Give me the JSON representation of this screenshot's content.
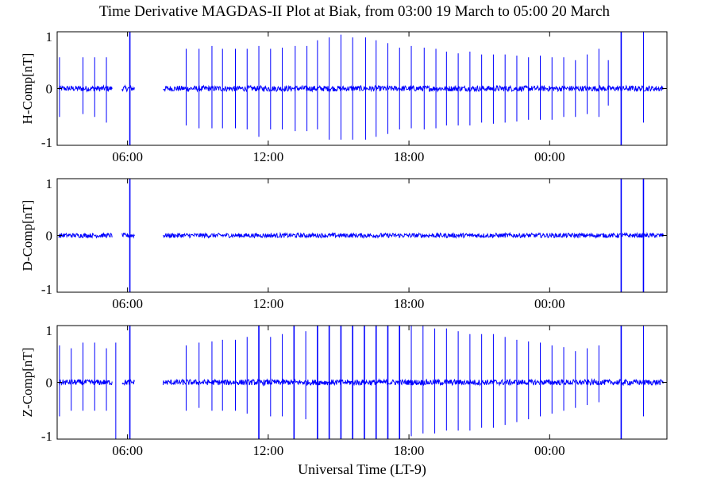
{
  "chart_data": {
    "type": "line",
    "title": "Time Derivative MAGDAS-II Plot at Biak, from 03:00 19 March to 05:00 20 March",
    "xlabel": "Universal Time (LT-9)",
    "x_range_hours_ut": [
      3.0,
      29.0
    ],
    "x_ticks": [
      "06:00",
      "12:00",
      "18:00",
      "00:00"
    ],
    "x_tick_hours_ut": [
      6,
      12,
      18,
      24
    ],
    "data_gaps_hours_ut": [
      [
        5.35,
        5.75
      ],
      [
        6.3,
        7.5
      ]
    ],
    "panels": [
      {
        "ylabel": "H-Comp[nT]",
        "ylim": [
          -1,
          1
        ],
        "yticks": [
          "1",
          "0",
          "-1"
        ],
        "noise_amplitude": 0.05,
        "spikes": [
          {
            "t": 3.1,
            "up": 0.55,
            "down": -0.5
          },
          {
            "t": 4.1,
            "up": 0.55,
            "down": -0.45
          },
          {
            "t": 4.6,
            "up": 0.55,
            "down": -0.5
          },
          {
            "t": 5.1,
            "up": 0.55,
            "down": -0.6
          },
          {
            "t": 6.1,
            "up": 1.0,
            "down": -1.0
          },
          {
            "t": 8.5,
            "up": 0.7,
            "down": -0.65
          },
          {
            "t": 9.05,
            "up": 0.7,
            "down": -0.7
          },
          {
            "t": 9.6,
            "up": 0.75,
            "down": -0.7
          },
          {
            "t": 10.05,
            "up": 0.7,
            "down": -0.7
          },
          {
            "t": 10.6,
            "up": 0.7,
            "down": -0.7
          },
          {
            "t": 11.1,
            "up": 0.7,
            "down": -0.72
          },
          {
            "t": 11.6,
            "up": 0.75,
            "down": -0.85
          },
          {
            "t": 12.1,
            "up": 0.7,
            "down": -0.72
          },
          {
            "t": 12.6,
            "up": 0.72,
            "down": -0.72
          },
          {
            "t": 13.15,
            "up": 0.75,
            "down": -0.75
          },
          {
            "t": 13.65,
            "up": 0.75,
            "down": -0.75
          },
          {
            "t": 14.1,
            "up": 0.85,
            "down": -0.72
          },
          {
            "t": 14.6,
            "up": 0.9,
            "down": -0.9
          },
          {
            "t": 15.1,
            "up": 0.95,
            "down": -0.9
          },
          {
            "t": 15.6,
            "up": 0.9,
            "down": -0.9
          },
          {
            "t": 16.15,
            "up": 0.9,
            "down": -0.9
          },
          {
            "t": 16.6,
            "up": 0.85,
            "down": -0.85
          },
          {
            "t": 17.1,
            "up": 0.8,
            "down": -0.8
          },
          {
            "t": 17.6,
            "up": 0.72,
            "down": -0.72
          },
          {
            "t": 18.1,
            "up": 0.75,
            "down": -0.7
          },
          {
            "t": 18.65,
            "up": 0.72,
            "down": -0.72
          },
          {
            "t": 19.15,
            "up": 0.7,
            "down": -0.7
          },
          {
            "t": 19.6,
            "up": 0.65,
            "down": -0.65
          },
          {
            "t": 20.1,
            "up": 0.62,
            "down": -0.65
          },
          {
            "t": 20.6,
            "up": 0.65,
            "down": -0.65
          },
          {
            "t": 21.1,
            "up": 0.6,
            "down": -0.6
          },
          {
            "t": 21.6,
            "up": 0.6,
            "down": -0.62
          },
          {
            "t": 22.1,
            "up": 0.6,
            "down": -0.6
          },
          {
            "t": 22.6,
            "up": 0.58,
            "down": -0.58
          },
          {
            "t": 23.1,
            "up": 0.55,
            "down": -0.55
          },
          {
            "t": 23.6,
            "up": 0.58,
            "down": -0.55
          },
          {
            "t": 24.1,
            "up": 0.55,
            "down": -0.55
          },
          {
            "t": 24.6,
            "up": 0.55,
            "down": -0.5
          },
          {
            "t": 25.1,
            "up": 0.5,
            "down": -0.5
          },
          {
            "t": 25.6,
            "up": 0.6,
            "down": -0.45
          },
          {
            "t": 26.1,
            "up": 0.7,
            "down": -0.5
          },
          {
            "t": 26.5,
            "up": 0.5,
            "down": -0.3
          },
          {
            "t": 27.05,
            "up": 1.0,
            "down": -1.0
          },
          {
            "t": 28.0,
            "up": 1.0,
            "down": -0.6
          }
        ]
      },
      {
        "ylabel": "D-Comp[nT]",
        "ylim": [
          -1,
          1
        ],
        "yticks": [
          "1",
          "0",
          "-1"
        ],
        "noise_amplitude": 0.04,
        "spikes": [
          {
            "t": 6.1,
            "up": 1.0,
            "down": -1.0
          },
          {
            "t": 27.05,
            "up": 1.0,
            "down": -1.0
          },
          {
            "t": 28.0,
            "up": 1.0,
            "down": -1.0
          }
        ]
      },
      {
        "ylabel": "Z-Comp[nT]",
        "ylim": [
          -1,
          1
        ],
        "yticks": [
          "1",
          "0",
          "-1"
        ],
        "noise_amplitude": 0.05,
        "spikes": [
          {
            "t": 3.1,
            "up": 0.65,
            "down": -0.6
          },
          {
            "t": 3.6,
            "up": 0.6,
            "down": -0.5
          },
          {
            "t": 4.1,
            "up": 0.7,
            "down": -0.5
          },
          {
            "t": 4.6,
            "up": 0.7,
            "down": -0.5
          },
          {
            "t": 5.1,
            "up": 0.6,
            "down": -0.5
          },
          {
            "t": 5.5,
            "up": 0.7,
            "down": -1.0
          },
          {
            "t": 6.1,
            "up": 1.0,
            "down": -1.0
          },
          {
            "t": 8.5,
            "up": 0.65,
            "down": -0.5
          },
          {
            "t": 9.05,
            "up": 0.7,
            "down": -0.45
          },
          {
            "t": 9.6,
            "up": 0.72,
            "down": -0.5
          },
          {
            "t": 10.05,
            "up": 0.75,
            "down": -0.5
          },
          {
            "t": 10.6,
            "up": 0.75,
            "down": -0.5
          },
          {
            "t": 11.1,
            "up": 0.8,
            "down": -0.55
          },
          {
            "t": 11.6,
            "up": 1.0,
            "down": -1.0
          },
          {
            "t": 12.1,
            "up": 0.8,
            "down": -0.6
          },
          {
            "t": 12.6,
            "up": 0.85,
            "down": -0.6
          },
          {
            "t": 13.1,
            "up": 1.0,
            "down": -1.0
          },
          {
            "t": 13.6,
            "up": 0.9,
            "down": -0.65
          },
          {
            "t": 14.1,
            "up": 1.0,
            "down": -1.0
          },
          {
            "t": 14.6,
            "up": 1.0,
            "down": -1.0
          },
          {
            "t": 15.1,
            "up": 1.0,
            "down": -1.0
          },
          {
            "t": 15.6,
            "up": 1.0,
            "down": -1.0
          },
          {
            "t": 16.1,
            "up": 1.0,
            "down": -1.0
          },
          {
            "t": 16.6,
            "up": 1.0,
            "down": -1.0
          },
          {
            "t": 17.1,
            "up": 1.0,
            "down": -1.0
          },
          {
            "t": 17.6,
            "up": 1.0,
            "down": -1.0
          },
          {
            "t": 18.1,
            "up": 1.0,
            "down": -0.95
          },
          {
            "t": 18.6,
            "up": 1.0,
            "down": -0.9
          },
          {
            "t": 19.1,
            "up": 0.95,
            "down": -0.9
          },
          {
            "t": 19.6,
            "up": 0.95,
            "down": -0.85
          },
          {
            "t": 20.1,
            "up": 0.9,
            "down": -0.85
          },
          {
            "t": 20.6,
            "up": 0.85,
            "down": -0.85
          },
          {
            "t": 21.1,
            "up": 0.85,
            "down": -0.8
          },
          {
            "t": 21.6,
            "up": 0.85,
            "down": -0.8
          },
          {
            "t": 22.1,
            "up": 0.8,
            "down": -0.75
          },
          {
            "t": 22.6,
            "up": 0.75,
            "down": -0.7
          },
          {
            "t": 23.1,
            "up": 0.72,
            "down": -0.65
          },
          {
            "t": 23.6,
            "up": 0.7,
            "down": -0.6
          },
          {
            "t": 24.1,
            "up": 0.65,
            "down": -0.55
          },
          {
            "t": 24.6,
            "up": 0.62,
            "down": -0.5
          },
          {
            "t": 25.1,
            "up": 0.55,
            "down": -0.45
          },
          {
            "t": 25.6,
            "up": 0.6,
            "down": -0.4
          },
          {
            "t": 26.1,
            "up": 0.65,
            "down": -0.35
          },
          {
            "t": 27.05,
            "up": 1.0,
            "down": -1.0
          },
          {
            "t": 28.0,
            "up": 1.0,
            "down": -0.6
          }
        ]
      }
    ],
    "line_color": "#0000ff",
    "grid": false
  }
}
